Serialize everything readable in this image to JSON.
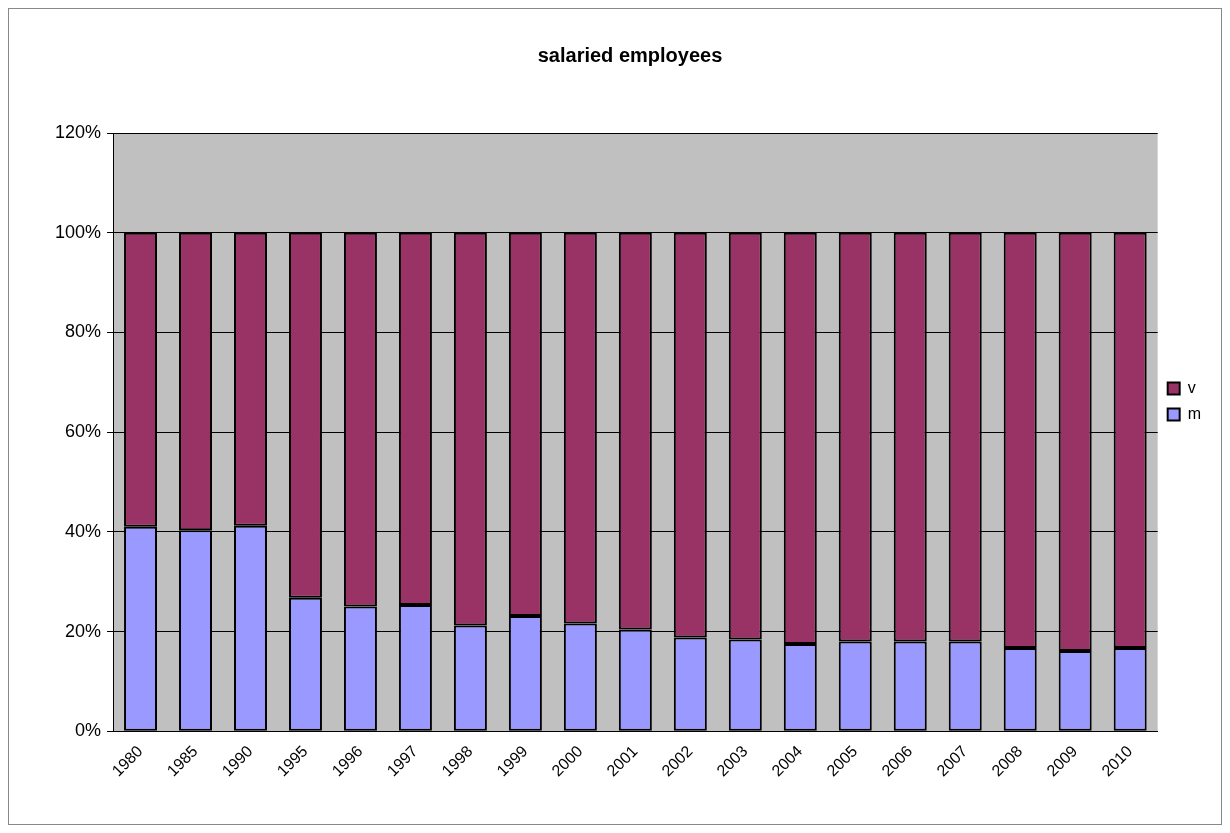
{
  "chart_data": {
    "type": "bar",
    "title": "salaried employees",
    "stacked": true,
    "categories": [
      "1980",
      "1985",
      "1990",
      "1995",
      "1996",
      "1997",
      "1998",
      "1999",
      "2000",
      "2001",
      "2002",
      "2003",
      "2004",
      "2005",
      "2006",
      "2007",
      "2008",
      "2009",
      "2010"
    ],
    "series": [
      {
        "name": "m",
        "color": "#9999ff",
        "values": [
          41,
          40.3,
          41.2,
          26.8,
          25,
          25.3,
          21.2,
          23.1,
          21.6,
          20.4,
          18.8,
          18.4,
          17.5,
          18,
          18,
          18,
          16.7,
          16.1,
          16.7
        ]
      },
      {
        "name": "v",
        "color": "#993366",
        "values": [
          59,
          59.7,
          58.8,
          73.2,
          75,
          74.7,
          78.8,
          76.9,
          78.4,
          79.6,
          81.2,
          81.6,
          82.5,
          82,
          82,
          82,
          83.3,
          83.9,
          83.3
        ]
      }
    ],
    "ylim": [
      0,
      120
    ],
    "yticks": [
      {
        "value": 0,
        "label": "0%"
      },
      {
        "value": 20,
        "label": "20%"
      },
      {
        "value": 40,
        "label": "40%"
      },
      {
        "value": 60,
        "label": "60%"
      },
      {
        "value": 80,
        "label": "80%"
      },
      {
        "value": 100,
        "label": "100%"
      },
      {
        "value": 120,
        "label": "120%"
      }
    ],
    "grid": "y",
    "legend": "right"
  }
}
